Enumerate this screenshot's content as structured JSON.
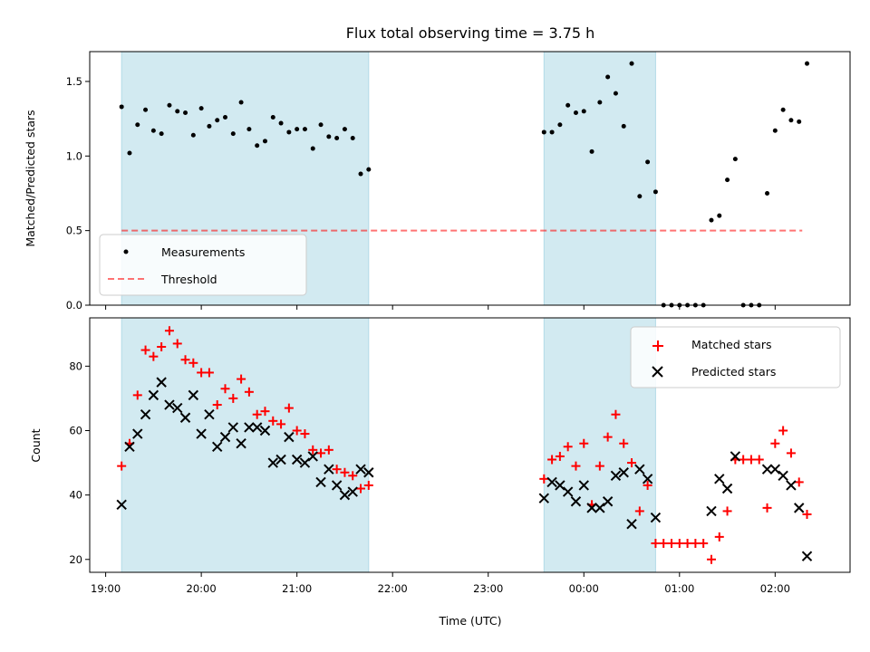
{
  "title": "Flux total observing time = 3.75 h",
  "xlabel": "Time (UTC)",
  "x_ticks": [
    "19:00",
    "20:00",
    "21:00",
    "22:00",
    "23:00",
    "00:00",
    "01:00",
    "02:00"
  ],
  "colors": {
    "shade": "#add8e6",
    "measurement": "#000000",
    "threshold": "#ff0000",
    "matched": "#ff0000",
    "predicted": "#000000"
  },
  "chart_data": [
    {
      "type": "scatter",
      "panel": "top",
      "ylabel": "Matched/Predicted stars",
      "ylim": [
        0,
        1.7
      ],
      "y_ticks": [
        "0.0",
        "0.5",
        "1.0",
        "1.5"
      ],
      "xlim": [
        "18:50",
        "02:47"
      ],
      "shaded_intervals": [
        [
          "19:10",
          "21:45"
        ],
        [
          "23:35",
          "00:45"
        ]
      ],
      "threshold": {
        "name": "Threshold",
        "value": 0.5,
        "x_range": [
          "19:10",
          "02:17"
        ],
        "style": "dashed"
      },
      "legend": {
        "placement": "lower-left",
        "entries": [
          "Measurements",
          "Threshold"
        ]
      },
      "series": [
        {
          "name": "Measurements",
          "marker": "dot",
          "points": [
            [
              "19:10",
              1.33
            ],
            [
              "19:15",
              1.02
            ],
            [
              "19:20",
              1.21
            ],
            [
              "19:25",
              1.31
            ],
            [
              "19:30",
              1.17
            ],
            [
              "19:35",
              1.15
            ],
            [
              "19:40",
              1.34
            ],
            [
              "19:45",
              1.3
            ],
            [
              "19:50",
              1.29
            ],
            [
              "19:55",
              1.14
            ],
            [
              "20:00",
              1.32
            ],
            [
              "20:05",
              1.2
            ],
            [
              "20:10",
              1.24
            ],
            [
              "20:15",
              1.26
            ],
            [
              "20:20",
              1.15
            ],
            [
              "20:25",
              1.36
            ],
            [
              "20:30",
              1.18
            ],
            [
              "20:35",
              1.07
            ],
            [
              "20:40",
              1.1
            ],
            [
              "20:45",
              1.26
            ],
            [
              "20:50",
              1.22
            ],
            [
              "20:55",
              1.16
            ],
            [
              "21:00",
              1.18
            ],
            [
              "21:05",
              1.18
            ],
            [
              "21:10",
              1.05
            ],
            [
              "21:15",
              1.21
            ],
            [
              "21:20",
              1.13
            ],
            [
              "21:25",
              1.12
            ],
            [
              "21:30",
              1.18
            ],
            [
              "21:35",
              1.12
            ],
            [
              "21:40",
              0.88
            ],
            [
              "21:45",
              0.91
            ],
            [
              "23:35",
              1.16
            ],
            [
              "23:40",
              1.16
            ],
            [
              "23:45",
              1.21
            ],
            [
              "23:50",
              1.34
            ],
            [
              "23:55",
              1.29
            ],
            [
              "00:00",
              1.3
            ],
            [
              "00:05",
              1.03
            ],
            [
              "00:10",
              1.36
            ],
            [
              "00:15",
              1.53
            ],
            [
              "00:20",
              1.42
            ],
            [
              "00:25",
              1.2
            ],
            [
              "00:30",
              1.62
            ],
            [
              "00:35",
              0.73
            ],
            [
              "00:40",
              0.96
            ],
            [
              "00:45",
              0.76
            ],
            [
              "00:50",
              0.0
            ],
            [
              "00:55",
              0.0
            ],
            [
              "01:00",
              0.0
            ],
            [
              "01:05",
              0.0
            ],
            [
              "01:10",
              0.0
            ],
            [
              "01:15",
              0.0
            ],
            [
              "01:20",
              0.57
            ],
            [
              "01:25",
              0.6
            ],
            [
              "01:30",
              0.84
            ],
            [
              "01:35",
              0.98
            ],
            [
              "01:40",
              0.0
            ],
            [
              "01:45",
              0.0
            ],
            [
              "01:50",
              0.0
            ],
            [
              "01:55",
              0.75
            ],
            [
              "02:00",
              1.17
            ],
            [
              "02:05",
              1.31
            ],
            [
              "02:10",
              1.24
            ],
            [
              "02:15",
              1.23
            ],
            [
              "02:20",
              1.62
            ]
          ]
        }
      ]
    },
    {
      "type": "scatter",
      "panel": "bottom",
      "ylabel": "Count",
      "ylim": [
        16,
        95
      ],
      "y_ticks": [
        "20",
        "40",
        "60",
        "80"
      ],
      "xlim": [
        "18:50",
        "02:47"
      ],
      "shaded_intervals": [
        [
          "19:10",
          "21:45"
        ],
        [
          "23:35",
          "00:45"
        ]
      ],
      "legend": {
        "placement": "upper-right",
        "entries": [
          "Matched stars",
          "Predicted stars"
        ]
      },
      "series": [
        {
          "name": "Matched stars",
          "marker": "plus",
          "points": [
            [
              "19:10",
              49
            ],
            [
              "19:15",
              56
            ],
            [
              "19:20",
              71
            ],
            [
              "19:25",
              85
            ],
            [
              "19:30",
              83
            ],
            [
              "19:35",
              86
            ],
            [
              "19:40",
              91
            ],
            [
              "19:45",
              87
            ],
            [
              "19:50",
              82
            ],
            [
              "19:55",
              81
            ],
            [
              "20:00",
              78
            ],
            [
              "20:05",
              78
            ],
            [
              "20:10",
              68
            ],
            [
              "20:15",
              73
            ],
            [
              "20:20",
              70
            ],
            [
              "20:25",
              76
            ],
            [
              "20:30",
              72
            ],
            [
              "20:35",
              65
            ],
            [
              "20:40",
              66
            ],
            [
              "20:45",
              63
            ],
            [
              "20:50",
              62
            ],
            [
              "20:55",
              67
            ],
            [
              "21:00",
              60
            ],
            [
              "21:05",
              59
            ],
            [
              "21:10",
              54
            ],
            [
              "21:15",
              53
            ],
            [
              "21:20",
              54
            ],
            [
              "21:25",
              48
            ],
            [
              "21:30",
              47
            ],
            [
              "21:35",
              46
            ],
            [
              "21:40",
              42
            ],
            [
              "21:45",
              43
            ],
            [
              "23:35",
              45
            ],
            [
              "23:40",
              51
            ],
            [
              "23:45",
              52
            ],
            [
              "23:50",
              55
            ],
            [
              "23:55",
              49
            ],
            [
              "00:00",
              56
            ],
            [
              "00:05",
              37
            ],
            [
              "00:10",
              49
            ],
            [
              "00:15",
              58
            ],
            [
              "00:20",
              65
            ],
            [
              "00:25",
              56
            ],
            [
              "00:30",
              50
            ],
            [
              "00:35",
              35
            ],
            [
              "00:40",
              43
            ],
            [
              "00:45",
              25
            ],
            [
              "00:50",
              25
            ],
            [
              "00:55",
              25
            ],
            [
              "01:00",
              25
            ],
            [
              "01:05",
              25
            ],
            [
              "01:10",
              25
            ],
            [
              "01:15",
              25
            ],
            [
              "01:20",
              20
            ],
            [
              "01:25",
              27
            ],
            [
              "01:30",
              35
            ],
            [
              "01:35",
              51
            ],
            [
              "01:40",
              51
            ],
            [
              "01:45",
              51
            ],
            [
              "01:50",
              51
            ],
            [
              "01:55",
              36
            ],
            [
              "02:00",
              56
            ],
            [
              "02:05",
              60
            ],
            [
              "02:10",
              53
            ],
            [
              "02:15",
              44
            ],
            [
              "02:20",
              34
            ]
          ]
        },
        {
          "name": "Predicted stars",
          "marker": "x",
          "points": [
            [
              "19:10",
              37
            ],
            [
              "19:15",
              55
            ],
            [
              "19:20",
              59
            ],
            [
              "19:25",
              65
            ],
            [
              "19:30",
              71
            ],
            [
              "19:35",
              75
            ],
            [
              "19:40",
              68
            ],
            [
              "19:45",
              67
            ],
            [
              "19:50",
              64
            ],
            [
              "19:55",
              71
            ],
            [
              "20:00",
              59
            ],
            [
              "20:05",
              65
            ],
            [
              "20:10",
              55
            ],
            [
              "20:15",
              58
            ],
            [
              "20:20",
              61
            ],
            [
              "20:25",
              56
            ],
            [
              "20:30",
              61
            ],
            [
              "20:35",
              61
            ],
            [
              "20:40",
              60
            ],
            [
              "20:45",
              50
            ],
            [
              "20:50",
              51
            ],
            [
              "20:55",
              58
            ],
            [
              "21:00",
              51
            ],
            [
              "21:05",
              50
            ],
            [
              "21:10",
              52
            ],
            [
              "21:15",
              44
            ],
            [
              "21:20",
              48
            ],
            [
              "21:25",
              43
            ],
            [
              "21:30",
              40
            ],
            [
              "21:35",
              41
            ],
            [
              "21:40",
              48
            ],
            [
              "21:45",
              47
            ],
            [
              "23:35",
              39
            ],
            [
              "23:40",
              44
            ],
            [
              "23:45",
              43
            ],
            [
              "23:50",
              41
            ],
            [
              "23:55",
              38
            ],
            [
              "00:00",
              43
            ],
            [
              "00:05",
              36
            ],
            [
              "00:10",
              36
            ],
            [
              "00:15",
              38
            ],
            [
              "00:20",
              46
            ],
            [
              "00:25",
              47
            ],
            [
              "00:30",
              31
            ],
            [
              "00:35",
              48
            ],
            [
              "00:40",
              45
            ],
            [
              "00:45",
              33
            ],
            [
              "01:20",
              35
            ],
            [
              "01:25",
              45
            ],
            [
              "01:30",
              42
            ],
            [
              "01:35",
              52
            ],
            [
              "01:55",
              48
            ],
            [
              "02:00",
              48
            ],
            [
              "02:05",
              46
            ],
            [
              "02:10",
              43
            ],
            [
              "02:15",
              36
            ],
            [
              "02:20",
              21
            ]
          ]
        }
      ]
    }
  ]
}
